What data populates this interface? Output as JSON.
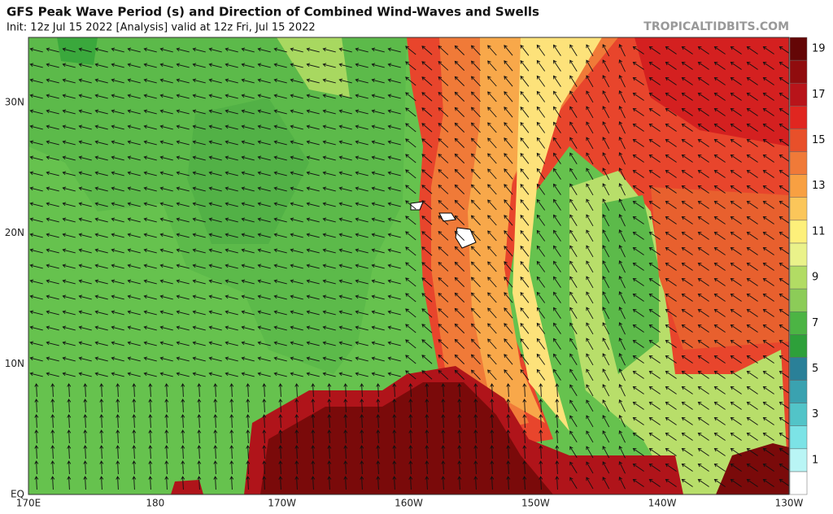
{
  "map": {
    "title": "GFS Peak Wave Period (s) and Direction of Combined Wind-Waves and Swells",
    "subtitle": "Init: 12z Jul 15 2022   [Analysis]   valid at 12z Fri, Jul 15 2022",
    "credit": "TROPICALTIDBITS.COM",
    "lon_labels": [
      "170E",
      "180",
      "170W",
      "160W",
      "150W",
      "140W",
      "130W"
    ],
    "lat_labels": [
      "EQ",
      "10N",
      "20N",
      "30N"
    ],
    "colorbar_labels": [
      1,
      3,
      5,
      7,
      9,
      11,
      13,
      15,
      17,
      19
    ]
  }
}
